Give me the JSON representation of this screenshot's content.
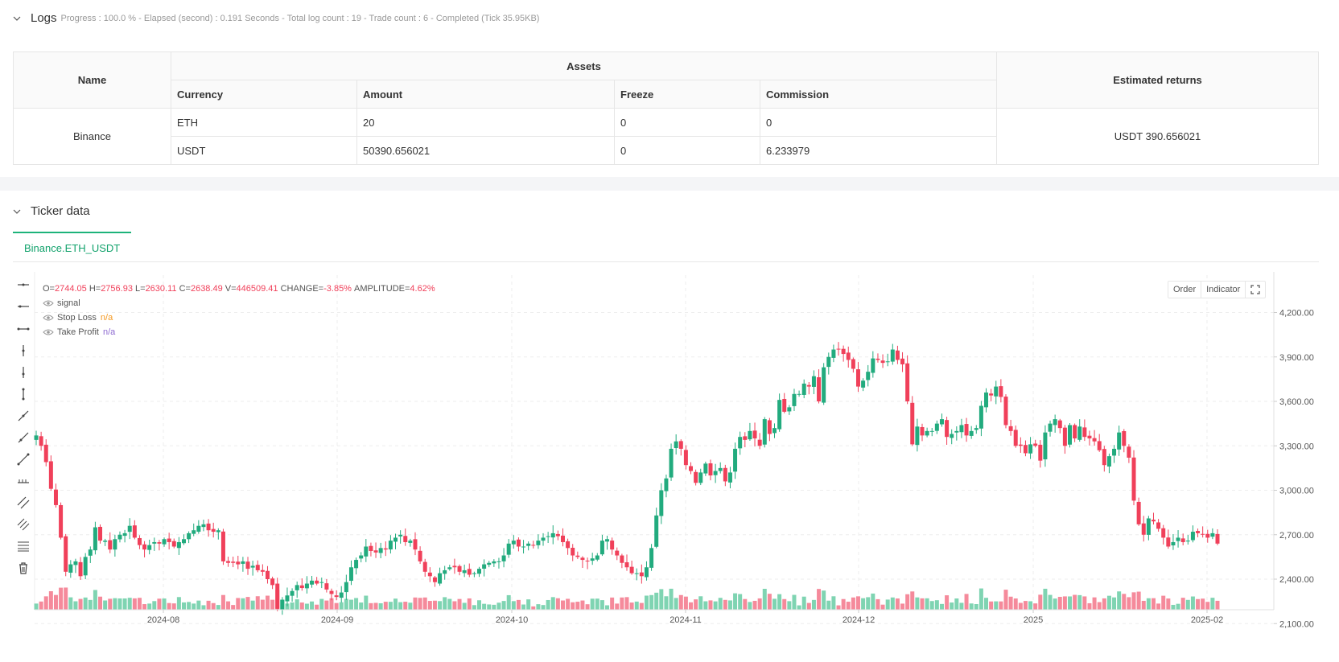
{
  "logs": {
    "title": "Logs",
    "meta": "Progress : 100.0 % - Elapsed (second) : 0.191  Seconds - Total log count : 19 - Trade count : 6 - Completed (Tick 35.95KB)"
  },
  "assets_table": {
    "name_header": "Name",
    "assets_header": "Assets",
    "returns_header": "Estimated returns",
    "columns": [
      "Currency",
      "Amount",
      "Freeze",
      "Commission"
    ],
    "exchange": "Binance",
    "rows": [
      {
        "currency": "ETH",
        "amount": "20",
        "freeze": "0",
        "commission": "0"
      },
      {
        "currency": "USDT",
        "amount": "50390.656021",
        "freeze": "0",
        "commission": "6.233979"
      }
    ],
    "estimated_returns": "USDT 390.656021"
  },
  "ticker": {
    "title": "Ticker data",
    "tab": "Binance.ETH_USDT"
  },
  "chart_legend": {
    "o_label": "O=",
    "o": "2744.05",
    "h_label": "H=",
    "h": "2756.93",
    "l_label": "L=",
    "l": "2630.11",
    "c_label": "C=",
    "c": "2638.49",
    "v_label": "V=",
    "v": "446509.41",
    "change_label": "CHANGE=",
    "change": "-3.85%",
    "amp_label": "AMPLITUDE=",
    "amp": "4.62%",
    "signal": "signal",
    "stop_loss": "Stop Loss",
    "stop_loss_val": "n/a",
    "take_profit": "Take Profit",
    "take_profit_val": "n/a"
  },
  "chart_buttons": {
    "order": "Order",
    "indicator": "Indicator"
  },
  "colors": {
    "up": "#22ab7e",
    "down": "#f0405a",
    "up_vol": "#7fd4b2",
    "down_vol": "#f58a9b",
    "accent": "#12a26c"
  },
  "chart_data": {
    "type": "candlestick",
    "x_ticks": [
      "2024-08",
      "2024-09",
      "2024-10",
      "2024-11",
      "2024-12",
      "2025",
      "2025-02"
    ],
    "y_ticks": [
      "4,200.00",
      "3,900.00",
      "3,600.00",
      "3,300.00",
      "3,000.00",
      "2,700.00",
      "2,400.00",
      "2,100.00"
    ],
    "ylim": [
      1960,
      4340
    ],
    "closes": [
      3370,
      3300,
      3190,
      3010,
      2900,
      2680,
      2450,
      2500,
      2520,
      2420,
      2550,
      2600,
      2750,
      2660,
      2660,
      2600,
      2670,
      2700,
      2710,
      2760,
      2680,
      2630,
      2600,
      2630,
      2650,
      2640,
      2670,
      2650,
      2620,
      2650,
      2670,
      2710,
      2730,
      2760,
      2770,
      2730,
      2720,
      2730,
      2520,
      2510,
      2510,
      2500,
      2520,
      2470,
      2490,
      2460,
      2450,
      2400,
      2360,
      2200,
      2260,
      2290,
      2320,
      2360,
      2340,
      2370,
      2390,
      2370,
      2380,
      2330,
      2300,
      2280,
      2310,
      2380,
      2480,
      2530,
      2560,
      2620,
      2590,
      2580,
      2610,
      2600,
      2660,
      2680,
      2700,
      2650,
      2660,
      2600,
      2520,
      2450,
      2420,
      2380,
      2440,
      2460,
      2480,
      2480,
      2450,
      2460,
      2430,
      2440,
      2470,
      2500,
      2510,
      2520,
      2520,
      2560,
      2640,
      2660,
      2620,
      2620,
      2640,
      2630,
      2660,
      2680,
      2690,
      2710,
      2690,
      2650,
      2610,
      2560,
      2550,
      2530,
      2520,
      2540,
      2560,
      2660,
      2670,
      2600,
      2560,
      2510,
      2480,
      2440,
      2440,
      2420,
      2480,
      2610,
      2830,
      3000,
      3080,
      3280,
      3330,
      3280,
      3170,
      3130,
      3050,
      3120,
      3180,
      3100,
      3130,
      3150,
      3060,
      3120,
      3280,
      3360,
      3340,
      3400,
      3350,
      3300,
      3480,
      3380,
      3420,
      3610,
      3530,
      3560,
      3650,
      3650,
      3720,
      3700,
      3770,
      3600,
      3830,
      3900,
      3950,
      3950,
      3920,
      3880,
      3820,
      3700,
      3740,
      3800,
      3890,
      3880,
      3860,
      3870,
      3950,
      3880,
      3850,
      3600,
      3310,
      3430,
      3370,
      3400,
      3400,
      3450,
      3480,
      3360,
      3380,
      3400,
      3440,
      3370,
      3400,
      3420,
      3570,
      3660,
      3640,
      3700,
      3630,
      3440,
      3400,
      3300,
      3300,
      3250,
      3310,
      3300,
      3200,
      3390,
      3450,
      3480,
      3420,
      3300,
      3440,
      3350,
      3430,
      3360,
      3350,
      3330,
      3270,
      3170,
      3230,
      3280,
      3390,
      3300,
      3220,
      2930,
      2770,
      2700,
      2810,
      2790,
      2740,
      2680,
      2620,
      2650,
      2680,
      2650,
      2660,
      2720,
      2710,
      2700,
      2680,
      2710,
      2640
    ]
  }
}
